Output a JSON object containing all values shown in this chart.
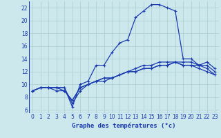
{
  "background_color": "#cce8ec",
  "grid_color": "#aacccc",
  "line_color": "#1a3aaf",
  "xlabel": "Graphe des températures (°c)",
  "xlim": [
    -0.5,
    23.5
  ],
  "ylim": [
    5.5,
    23.0
  ],
  "xticks": [
    0,
    1,
    2,
    3,
    4,
    5,
    6,
    7,
    8,
    9,
    10,
    11,
    12,
    13,
    14,
    15,
    16,
    17,
    18,
    19,
    20,
    21,
    22,
    23
  ],
  "yticks": [
    6,
    8,
    10,
    12,
    14,
    16,
    18,
    20,
    22
  ],
  "series1_x": [
    0,
    1,
    2,
    3,
    4,
    5,
    6,
    7,
    8,
    9,
    10,
    11,
    12,
    13,
    14,
    15,
    16,
    17,
    18,
    19,
    20,
    21,
    22,
    23
  ],
  "series1_y": [
    9.0,
    9.5,
    9.5,
    9.5,
    9.5,
    6.5,
    10.0,
    10.5,
    13.0,
    13.0,
    15.0,
    16.5,
    17.0,
    20.5,
    21.5,
    22.5,
    22.5,
    22.0,
    21.5,
    14.0,
    14.0,
    13.0,
    13.0,
    12.0
  ],
  "series2_x": [
    0,
    1,
    2,
    3,
    4,
    5,
    6,
    7,
    8,
    9,
    10,
    11,
    12,
    13,
    14,
    15,
    16,
    17,
    18,
    19,
    20,
    21,
    22,
    23
  ],
  "series2_y": [
    9.0,
    9.5,
    9.5,
    9.5,
    9.5,
    7.0,
    9.0,
    10.0,
    10.5,
    10.5,
    11.0,
    11.5,
    12.0,
    12.5,
    13.0,
    13.0,
    13.5,
    13.5,
    13.5,
    13.0,
    13.0,
    13.0,
    12.5,
    11.5
  ],
  "series3_x": [
    0,
    1,
    2,
    3,
    4,
    5,
    6,
    7,
    8,
    9,
    10,
    11,
    12,
    13,
    14,
    15,
    16,
    17,
    18,
    19,
    20,
    21,
    22,
    23
  ],
  "series3_y": [
    9.0,
    9.5,
    9.5,
    9.0,
    9.0,
    7.5,
    9.5,
    10.0,
    10.5,
    11.0,
    11.0,
    11.5,
    12.0,
    12.0,
    12.5,
    12.5,
    13.0,
    13.0,
    13.5,
    13.5,
    13.5,
    13.0,
    13.5,
    12.5
  ],
  "series4_x": [
    0,
    1,
    2,
    3,
    4,
    5,
    6,
    7,
    8,
    9,
    10,
    11,
    12,
    13,
    14,
    15,
    16,
    17,
    18,
    19,
    20,
    21,
    22,
    23
  ],
  "series4_y": [
    9.0,
    9.5,
    9.5,
    9.5,
    9.0,
    7.5,
    9.5,
    10.0,
    10.5,
    11.0,
    11.0,
    11.5,
    12.0,
    12.0,
    12.5,
    12.5,
    13.0,
    13.0,
    13.5,
    13.0,
    13.0,
    12.5,
    12.0,
    11.5
  ],
  "tick_fontsize": 5.5,
  "xlabel_fontsize": 6.5
}
